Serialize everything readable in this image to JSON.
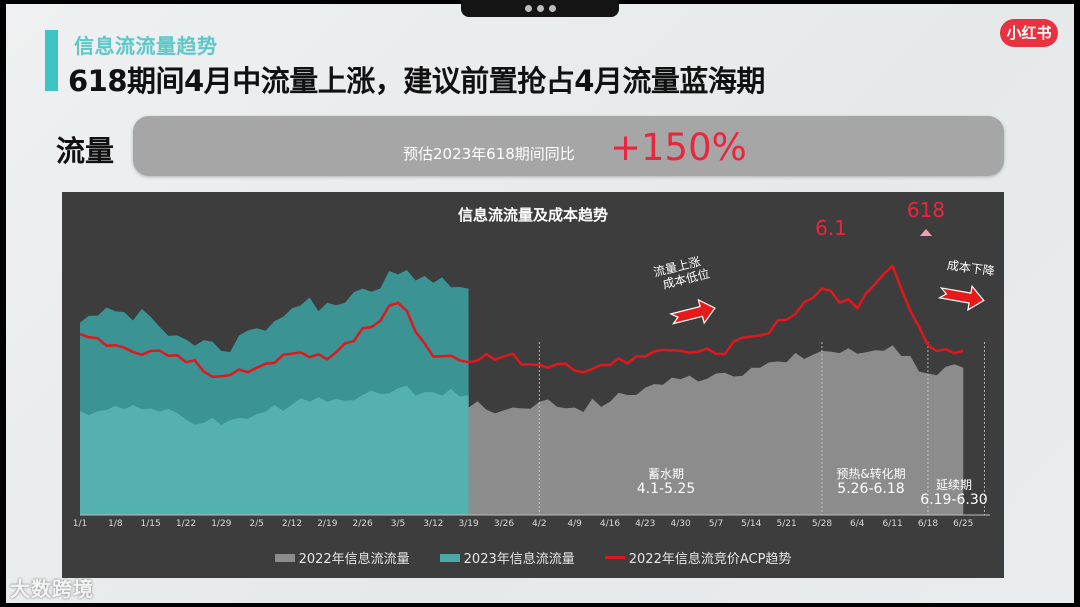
{
  "window": {
    "notch_dots": 3
  },
  "header": {
    "subtitle": "信息流流量趋势",
    "title": "618期间4月中流量上涨，建议前置抢占4月流量蓝海期",
    "brand_logo": "小红书"
  },
  "metric": {
    "label": "流量",
    "text": "预估2023年618期间同比",
    "value": "+150%"
  },
  "chart_data": {
    "type": "area",
    "title": "信息流流量及成本趋势",
    "xlabel": "",
    "ylabel": "",
    "grid": false,
    "legend_position": "bottom",
    "x_ticks": [
      "1/1",
      "1/8",
      "1/15",
      "1/22",
      "1/29",
      "2/5",
      "2/12",
      "2/19",
      "2/26",
      "3/5",
      "3/12",
      "3/19",
      "3/26",
      "4/2",
      "4/9",
      "4/16",
      "4/23",
      "4/30",
      "5/7",
      "5/14",
      "5/21",
      "5/28",
      "6/4",
      "6/11",
      "6/18",
      "6/25"
    ],
    "series": [
      {
        "name": "2022年信息流流量",
        "kind": "area",
        "color": "#8c8c8c",
        "note": "relative index 0-100 by week tick (estimated)",
        "values": [
          36,
          34,
          37,
          36,
          32,
          34,
          37,
          36,
          35,
          37,
          34,
          38,
          37,
          40,
          38,
          40,
          45,
          48,
          50,
          52,
          54,
          58,
          57,
          60,
          50,
          52
        ]
      },
      {
        "name": "2023年信息流流量",
        "kind": "area",
        "color": "#4aa8a8",
        "note": "relative index 0-100 by week tick, data through 3/19 (estimated)",
        "values": [
          68,
          72,
          70,
          62,
          58,
          66,
          73,
          75,
          80,
          85,
          82,
          80
        ]
      },
      {
        "name": "2022年信息流竞价ACP趋势",
        "kind": "line",
        "color": "#e0171c",
        "note": "relative index 0-100 by week tick (estimated)",
        "values": [
          64,
          60,
          58,
          54,
          49,
          52,
          57,
          55,
          66,
          75,
          56,
          54,
          56,
          53,
          51,
          53,
          56,
          58,
          57,
          63,
          69,
          80,
          73,
          88,
          60,
          58
        ]
      }
    ],
    "annotations": [
      {
        "text": "6.1",
        "x": "6/1"
      },
      {
        "text": "618",
        "x": "6/18"
      },
      {
        "text": "流量上涨\n成本低位"
      },
      {
        "text": "成本下降"
      }
    ],
    "phases": [
      {
        "name": "蓄水期",
        "range": "4.1-5.25"
      },
      {
        "name": "预热&转化期",
        "range": "5.26-6.18"
      },
      {
        "name": "延续期",
        "range": "6.19-6.30"
      }
    ]
  },
  "annotations": {
    "peak_61": "6.1",
    "peak_618": "618",
    "rise_line1": "流量上涨",
    "rise_line2": "成本低位",
    "drop": "成本下降"
  },
  "phases": {
    "p1_name": "蓄水期",
    "p1_range": "4.1-5.25",
    "p2_name": "预热&转化期",
    "p2_range": "5.26-6.18",
    "p3_name": "延续期",
    "p3_range": "6.19-6.30"
  },
  "legend": {
    "s1": "2022年信息流流量",
    "s2": "2023年信息流流量",
    "s3": "2022年信息流竞价ACP趋势"
  },
  "colors": {
    "accent_teal": "#3cc4c4",
    "cost_red": "#e0171c",
    "highlight_red": "#e8273e",
    "area_2022": "#8c8c8c",
    "area_2023": "#4aa8a8",
    "panel_bg": "#3d3d3d"
  },
  "watermark": "大数跨境"
}
